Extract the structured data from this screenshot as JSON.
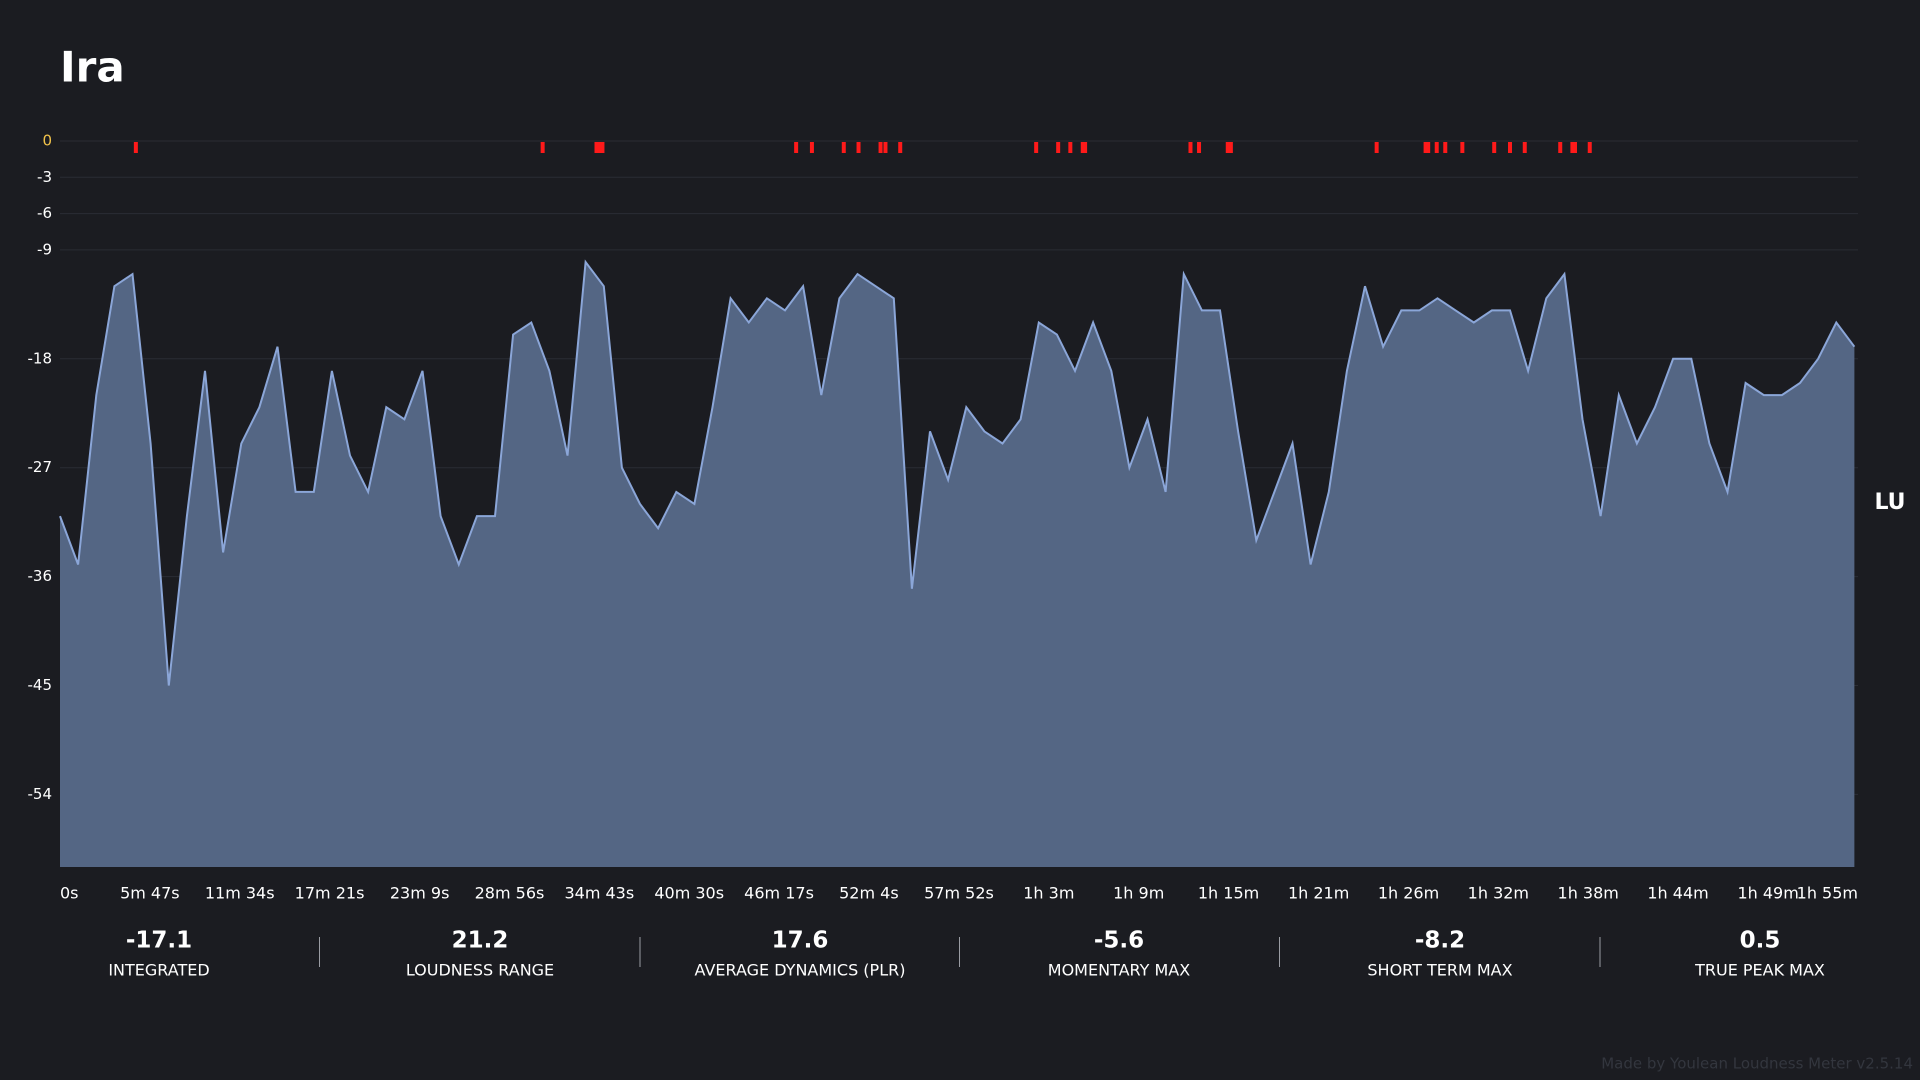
{
  "chart_data": {
    "type": "area",
    "title": "Ira",
    "y_unit": "LU",
    "x": [
      0,
      70,
      140,
      210,
      280,
      350,
      420,
      490,
      560,
      630,
      700,
      770,
      840,
      910,
      980,
      1050,
      1120,
      1190,
      1260,
      1330,
      1400,
      1470,
      1540,
      1610,
      1680,
      1750,
      1820,
      1890,
      1960,
      2030,
      2100,
      2170,
      2240,
      2310,
      2380,
      2450,
      2520,
      2590,
      2660,
      2730,
      2800,
      2870,
      2940,
      3010,
      3080,
      3150,
      3220,
      3290,
      3360,
      3430,
      3500,
      3570,
      3640,
      3710,
      3780,
      3850,
      3920,
      3990,
      4060,
      4130,
      4200,
      4270,
      4340,
      4410,
      4480,
      4550,
      4620,
      4690,
      4760,
      4830,
      4900,
      4970,
      5040,
      5110,
      5180,
      5250,
      5320,
      5390,
      5460,
      5530,
      5600,
      5670,
      5740,
      5810,
      5880,
      5950,
      6020,
      6090,
      6160,
      6230,
      6300,
      6370,
      6440,
      6510,
      6580,
      6650,
      6720,
      6790,
      6860,
      6930
    ],
    "values": [
      -31,
      -35,
      -21,
      -12,
      -11,
      -25,
      -45,
      -31,
      -19,
      -34,
      -25,
      -22,
      -17,
      -29,
      -29,
      -19,
      -26,
      -29,
      -22,
      -23,
      -19,
      -31,
      -35,
      -31,
      -31,
      -16,
      -15,
      -19,
      -26,
      -10,
      -12,
      -27,
      -30,
      -32,
      -29,
      -30,
      -22,
      -13,
      -15,
      -13,
      -14,
      -12,
      -21,
      -13,
      -11,
      -12,
      -13,
      -37,
      -24,
      -28,
      -22,
      -24,
      -25,
      -23,
      -15,
      -16,
      -19,
      -15,
      -19,
      -27,
      -23,
      -29,
      -11,
      -14,
      -14,
      -24,
      -33,
      -29,
      -25,
      -35,
      -29,
      -19,
      -12,
      -17,
      -14,
      -14,
      -13,
      -14,
      -15,
      -14,
      -14,
      -19,
      -13,
      -11,
      -23,
      -31,
      -21,
      -25,
      -22,
      -18,
      -18,
      -25,
      -29,
      -20,
      -21,
      -21,
      -20,
      -18,
      -15,
      -17
    ],
    "color": "#546684",
    "line_color": "#8ba6d8",
    "peak_markers": [
      293,
      1864,
      2072,
      2086,
      2095,
      2843,
      2904,
      3027,
      3084,
      3169,
      3188,
      3245,
      3770,
      3855,
      3902,
      3950,
      3959,
      4366,
      4399,
      4510,
      4522,
      5085,
      5274,
      5284,
      5317,
      5350,
      5416,
      5539,
      5600,
      5657,
      5794,
      5841,
      5851,
      5908
    ],
    "peak_color": "#ff1a1a",
    "xlim": [
      0,
      6944
    ],
    "xticks": [
      {
        "value": 0,
        "label": "0s"
      },
      {
        "value": 347,
        "label": "5m 47s"
      },
      {
        "value": 694,
        "label": "11m 34s"
      },
      {
        "value": 1041,
        "label": "17m 21s"
      },
      {
        "value": 1389,
        "label": "23m 9s"
      },
      {
        "value": 1736,
        "label": "28m 56s"
      },
      {
        "value": 2083,
        "label": "34m 43s"
      },
      {
        "value": 2430,
        "label": "40m 30s"
      },
      {
        "value": 2777,
        "label": "46m 17s"
      },
      {
        "value": 3124,
        "label": "52m 4s"
      },
      {
        "value": 3472,
        "label": "57m 52s"
      },
      {
        "value": 3819,
        "label": "1h 3m"
      },
      {
        "value": 4166,
        "label": "1h 9m"
      },
      {
        "value": 4513,
        "label": "1h 15m"
      },
      {
        "value": 4861,
        "label": "1h 21m"
      },
      {
        "value": 5208,
        "label": "1h 26m"
      },
      {
        "value": 5555,
        "label": "1h 32m"
      },
      {
        "value": 5902,
        "label": "1h 38m"
      },
      {
        "value": 6249,
        "label": "1h 44m"
      },
      {
        "value": 6597,
        "label": "1h 49m"
      },
      {
        "value": 6944,
        "label": "1h 55m"
      }
    ],
    "ylim": [
      -60,
      0
    ],
    "yticks": [
      0,
      -3,
      -6,
      -9,
      -18,
      -27,
      -36,
      -45,
      -54
    ],
    "grid": true
  },
  "stats": [
    {
      "value": -17.1,
      "label": "INTEGRATED"
    },
    {
      "value": 21.2,
      "label": "LOUDNESS RANGE"
    },
    {
      "value": 17.6,
      "label": "AVERAGE DYNAMICS (PLR)"
    },
    {
      "value": -5.6,
      "label": "MOMENTARY MAX"
    },
    {
      "value": -8.2,
      "label": "SHORT TERM MAX"
    },
    {
      "value": 0.5,
      "label": "TRUE PEAK MAX"
    }
  ],
  "footer": "Made by Youlean Loudness Meter v2.5.14"
}
